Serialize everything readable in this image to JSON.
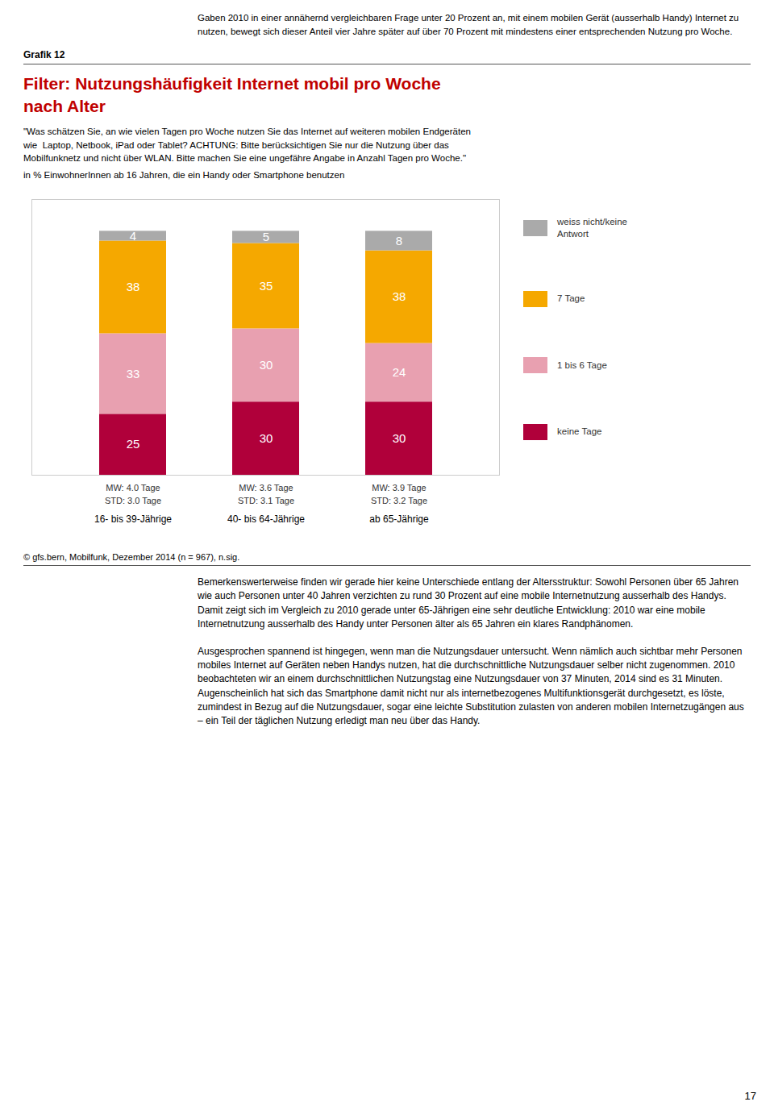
{
  "header": "Grafik 12",
  "intro": "Gaben 2010 in einer annähernd vergleichbaren Frage unter 20 Prozent an, mit einem mobilen Gerät (ausserhalb Handy) Internet zu nutzen, bewegt sich dieser Anteil vier Jahre später auf über 70 Prozent mit mindestens einer entsprechenden Nutzung pro Woche.",
  "body": [
    "Bemerkenswerterweise finden wir gerade hier keine Unterschiede entlang der Altersstruktur: Sowohl Personen über 65 Jahren wie auch Personen unter 40 Jahren verzichten zu rund 30 Prozent auf eine mobile Internetnutzung ausserhalb des Handys. Damit zeigt sich im Vergleich zu 2010 gerade unter 65-Jährigen eine sehr deutliche Entwicklung: 2010 war eine mobile Internetnutzung ausserhalb des Handy unter Personen älter als 65 Jahren ein klares Randphänomen.",
    "Ausgesprochen spannend ist hingegen, wenn man die Nutzungsdauer untersucht. Wenn nämlich auch sichtbar mehr Personen mobiles Internet auf Geräten neben Handys nutzen, hat die durchschnittliche Nutzungsdauer selber nicht zugenommen. 2010 beobachteten wir an einem durchschnittlichen Nutzungstag eine Nutzungsdauer von 37 Minuten, 2014 sind es 31 Minuten. Augenscheinlich hat sich das Smartphone damit nicht nur als internetbezogenes Multifunktionsgerät durchgesetzt, es löste, zumindest in Bezug auf die Nutzungsdauer, sogar eine leichte Substitution zulasten von anderen mobilen Internetzugängen aus – ein Teil der täglichen Nutzung erledigt man neu über das Handy."
  ],
  "page_number": "17",
  "chart_data": {
    "type": "bar",
    "title": "Filter: Nutzungshäufigkeit Internet mobil pro Woche\nnach Alter",
    "subtitle": "\"Was schätzen Sie, an wie vielen Tagen pro Woche nutzen Sie das Internet auf weiteren mobilen Endgeräten\nwie  Laptop, Netbook, iPad oder Tablet? ACHTUNG: Bitte berücksichtigen Sie nur die Nutzung über das\nMobilfunknetz und nicht über WLAN. Bitte machen Sie eine ungefähre Angabe in Anzahl Tagen pro Woche.\"",
    "note": "in % EinwohnerInnen ab 16 Jahren, die ein Handy oder Smartphone benutzen",
    "source": "© gfs.bern, Mobilfunk, Dezember 2014 (n = 967), n.sig.",
    "categories": [
      "16- bis 39-Jährige",
      "40- bis 64-Jährige",
      "ab 65-Jährige"
    ],
    "series": [
      {
        "name": "keine Tage",
        "color": "#b0003a",
        "values": [
          25,
          30,
          30
        ]
      },
      {
        "name": "1 bis 6 Tage",
        "color": "#e8a0b0",
        "values": [
          33,
          30,
          24
        ]
      },
      {
        "name": "7 Tage",
        "color": "#f5a800",
        "values": [
          38,
          35,
          38
        ]
      },
      {
        "name": "weiss nicht/keine\nAntwort",
        "color": "#aaaaaa",
        "values": [
          4,
          5,
          8
        ]
      }
    ],
    "annotations": [
      [
        "MW: 4.0 Tage",
        "STD: 3.0 Tage"
      ],
      [
        "MW: 3.6 Tage",
        "STD: 3.1 Tage"
      ],
      [
        "MW: 3.9 Tage",
        "STD: 3.2 Tage"
      ]
    ],
    "ylim": [
      0,
      113
    ],
    "stacked": true,
    "data_labels": true,
    "tick_labels": "x",
    "legend": "right"
  }
}
